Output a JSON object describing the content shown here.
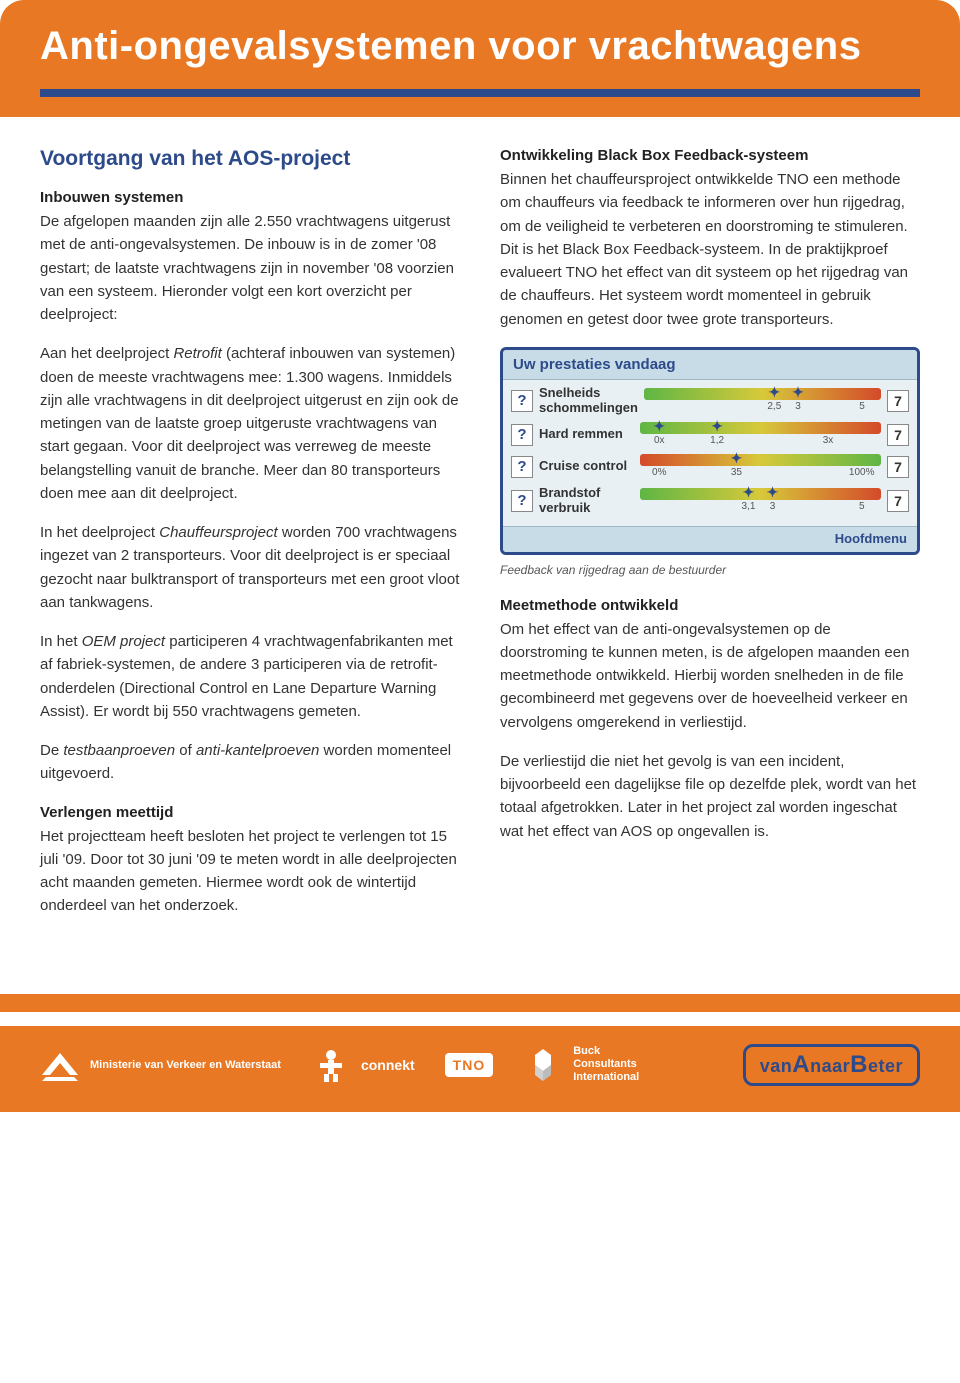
{
  "banner": {
    "title": "Anti-ongevalsystemen voor vrachtwagens"
  },
  "left": {
    "title": "Voortgang van het AOS-project",
    "h1": "Inbouwen systemen",
    "p1": "De afgelopen maanden zijn alle 2.550 vrachtwagens uitgerust met de anti-ongevalsystemen. De inbouw is in de zomer '08 gestart; de laatste vrachtwagens zijn in november '08 voorzien van een systeem. Hieronder volgt een kort overzicht per deelproject:",
    "p2a": "Aan het deelproject ",
    "p2i": "Retrofit",
    "p2b": " (achteraf inbouwen van systemen) doen de meeste vrachtwagens mee: 1.300 wagens. Inmiddels zijn alle vrachtwagens in dit deelproject uitgerust en zijn ook de metingen van de laatste groep uitgeruste vrachtwagens van start gegaan. Voor dit deelproject was verreweg de meeste belangstelling vanuit de branche. Meer dan 80 transporteurs doen mee aan dit deelproject.",
    "p3a": "In het deelproject ",
    "p3i": "Chauffeursproject",
    "p3b": " worden 700 vrachtwagens ingezet van 2 transporteurs. Voor dit deelproject is er speciaal gezocht naar bulktransport of transporteurs met een groot vloot aan tankwagens.",
    "p4a": "In het ",
    "p4i": "OEM project",
    "p4b": " participeren 4 vrachtwagenfabrikanten met af fabriek-systemen, de andere 3 participeren via de retrofit-onderdelen (Directional Control en Lane Departure Warning Assist). Er wordt bij 550 vrachtwagens gemeten.",
    "p5a": "De ",
    "p5i": "testbaanproeven",
    "p5m": " of ",
    "p5i2": "anti-kantelproeven",
    "p5b": " worden momenteel uitgevoerd.",
    "h2": "Verlengen meettijd",
    "p6": "Het projectteam heeft besloten het project te verlengen tot 15 juli '09. Door tot 30 juni '09 te meten wordt in alle deelprojecten acht maanden gemeten. Hiermee wordt ook de wintertijd onderdeel van het onderzoek."
  },
  "right": {
    "h1": "Ontwikkeling Black Box Feedback-systeem",
    "p1": "Binnen het chauffeursproject ontwikkelde TNO een methode om chauffeurs via feedback te informeren over hun rijgedrag, om de veiligheid te verbeteren en doorstroming te stimuleren. Dit is het Black Box Feedback-systeem. In de praktijkproef evalueert TNO het effect van dit systeem op het rijgedrag van de chauffeurs. Het systeem wordt momenteel in gebruik genomen en getest door twee grote transporteurs.",
    "caption": "Feedback van rijgedrag aan de bestuurder",
    "h2": "Meetmethode ontwikkeld",
    "p2": "Om het effect van de anti-ongevalsystemen op de doorstroming te kunnen meten, is de afgelopen maanden een meetmethode ontwikkeld. Hierbij worden snelheden in de file gecombineerd met gegevens over de hoeveelheid verkeer en vervolgens omgerekend in verliestijd.",
    "p3": "De verliestijd die niet het gevolg is van een incident, bijvoorbeeld een dagelijkse file op dezelfde plek, wordt van het totaal afgetrokken. Later in het project zal worden ingeschat wat het effect van AOS op ongevallen is."
  },
  "blackbox": {
    "title": "Uw prestaties vandaag",
    "footer": "Hoofdmenu",
    "rows": [
      {
        "label": "Snelheids schommelingen",
        "gradient": "linear-gradient(90deg,#5fb645 0%,#d7c93a 50%,#d44a2a 100%)",
        "markers": [
          {
            "pos": 55,
            "label": "2,5",
            "glyph": "✦"
          },
          {
            "pos": 65,
            "label": "3",
            "glyph": "✦"
          },
          {
            "pos": 92,
            "label": "5",
            "glyph": ""
          }
        ],
        "score": "7"
      },
      {
        "label": "Hard remmen",
        "gradient": "linear-gradient(90deg,#5fb645 0%,#d7c93a 50%,#d44a2a 100%)",
        "markers": [
          {
            "pos": 8,
            "label": "0x",
            "glyph": "✦"
          },
          {
            "pos": 32,
            "label": "1,2",
            "glyph": "✦"
          },
          {
            "pos": 78,
            "label": "3x",
            "glyph": ""
          }
        ],
        "score": "7"
      },
      {
        "label": "Cruise control",
        "gradient": "linear-gradient(90deg,#d44a2a 0%,#d7c93a 50%,#5fb645 100%)",
        "markers": [
          {
            "pos": 8,
            "label": "0%",
            "glyph": ""
          },
          {
            "pos": 40,
            "label": "35",
            "glyph": "✦"
          },
          {
            "pos": 92,
            "label": "100%",
            "glyph": ""
          }
        ],
        "score": "7"
      },
      {
        "label": "Brandstof verbruik",
        "gradient": "linear-gradient(90deg,#5fb645 0%,#d7c93a 50%,#d44a2a 100%)",
        "markers": [
          {
            "pos": 45,
            "label": "3,1",
            "glyph": "✦"
          },
          {
            "pos": 55,
            "label": "3",
            "glyph": "✦"
          },
          {
            "pos": 92,
            "label": "5",
            "glyph": ""
          }
        ],
        "score": "7"
      }
    ]
  },
  "footer": {
    "ministry": "Ministerie van Verkeer en Waterstaat",
    "connekt": "connekt",
    "tno": "TNO",
    "buck1": "Buck",
    "buck2": "Consultants",
    "buck3": "International",
    "vanab1": "van",
    "vanab2": "A",
    "vanab3": "naar",
    "vanab4": "B",
    "vanab5": "eter"
  },
  "colors": {
    "orange": "#e97824",
    "blue": "#2d4a8a",
    "widget_bg": "#e8f0f4",
    "widget_header": "#c8dce8"
  }
}
